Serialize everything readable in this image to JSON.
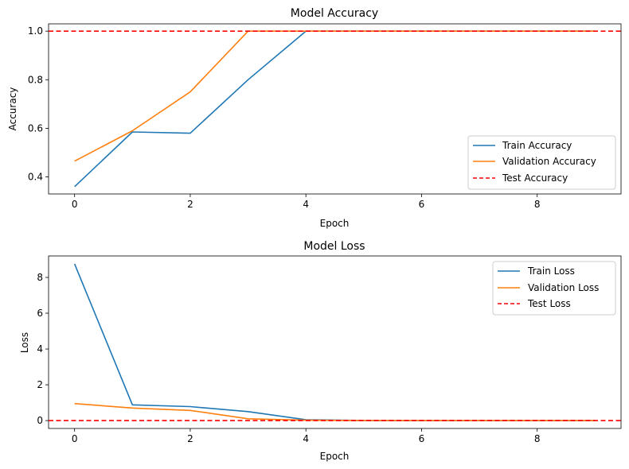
{
  "chart_data": [
    {
      "type": "line",
      "title": "Model Accuracy",
      "xlabel": "Epoch",
      "ylabel": "Accuracy",
      "xlim": [
        -0.45,
        9.45
      ],
      "ylim": [
        0.33,
        1.03
      ],
      "x_ticks": [
        0,
        2,
        4,
        6,
        8
      ],
      "x_tick_labels": [
        "0",
        "2",
        "4",
        "6",
        "8"
      ],
      "y_ticks": [
        0.4,
        0.6,
        0.8,
        1.0
      ],
      "y_tick_labels": [
        "0.4",
        "0.6",
        "0.8",
        "1.0"
      ],
      "grid": false,
      "legend_position": "lower-right",
      "x": [
        0,
        1,
        2,
        3,
        4,
        5,
        6,
        7,
        8,
        9
      ],
      "series": [
        {
          "name": "Train Accuracy",
          "color": "#1f77b4",
          "style": "solid",
          "values": [
            0.36,
            0.585,
            0.58,
            0.8,
            1.0,
            1.0,
            1.0,
            1.0,
            1.0,
            1.0
          ]
        },
        {
          "name": "Validation Accuracy",
          "color": "#ff7f0e",
          "style": "solid",
          "values": [
            0.465,
            0.59,
            0.75,
            1.0,
            1.0,
            1.0,
            1.0,
            1.0,
            1.0,
            1.0
          ]
        }
      ],
      "hlines": [
        {
          "name": "Test Accuracy",
          "color": "#ff0000",
          "style": "dashed",
          "value": 1.0
        }
      ]
    },
    {
      "type": "line",
      "title": "Model Loss",
      "xlabel": "Epoch",
      "ylabel": "Loss",
      "xlim": [
        -0.45,
        9.45
      ],
      "ylim": [
        -0.44,
        9.2
      ],
      "x_ticks": [
        0,
        2,
        4,
        6,
        8
      ],
      "x_tick_labels": [
        "0",
        "2",
        "4",
        "6",
        "8"
      ],
      "y_ticks": [
        0,
        2,
        4,
        6,
        8
      ],
      "y_tick_labels": [
        "0",
        "2",
        "4",
        "6",
        "8"
      ],
      "grid": false,
      "legend_position": "upper-right",
      "x": [
        0,
        1,
        2,
        3,
        4,
        5,
        6,
        7,
        8,
        9
      ],
      "series": [
        {
          "name": "Train Loss",
          "color": "#1f77b4",
          "style": "solid",
          "values": [
            8.75,
            0.88,
            0.78,
            0.5,
            0.05,
            0.01,
            0.0,
            0.0,
            0.0,
            0.0
          ]
        },
        {
          "name": "Validation Loss",
          "color": "#ff7f0e",
          "style": "solid",
          "values": [
            0.95,
            0.7,
            0.57,
            0.1,
            0.02,
            0.0,
            0.0,
            0.0,
            0.0,
            0.0
          ]
        }
      ],
      "hlines": [
        {
          "name": "Test Loss",
          "color": "#ff0000",
          "style": "dashed",
          "value": 0.0
        }
      ]
    }
  ]
}
